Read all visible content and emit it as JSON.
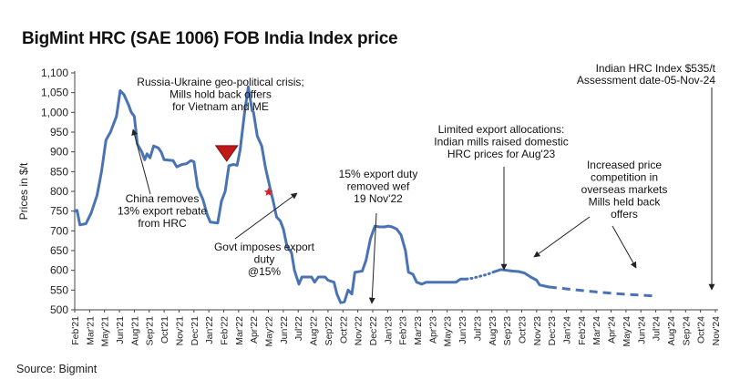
{
  "title": "BigMint HRC (SAE 1006) FOB India Index price",
  "source": "Source: Bigmint",
  "chart_data": {
    "type": "line",
    "ylabel": "Prices in $/t",
    "ylim": [
      500,
      1100
    ],
    "yticks": [
      500,
      550,
      600,
      650,
      700,
      750,
      800,
      850,
      900,
      950,
      1000,
      1050,
      1100
    ],
    "ytick_labels": [
      "500",
      "550",
      "600",
      "650",
      "700",
      "750",
      "800",
      "850",
      "900",
      "950",
      "1,000",
      "1,050",
      "1,100"
    ],
    "categories": [
      "Feb'21",
      "Mar'21",
      "May'21",
      "Jun'21",
      "Aug'21",
      "Sep'21",
      "Oct'21",
      "Nov'21",
      "Dec'21",
      "Jan'22",
      "Feb'22",
      "Mar'22",
      "Apr'22",
      "May'22",
      "Jun'22",
      "Jul'22",
      "Aug'22",
      "Sep'22",
      "Oct'22",
      "Nov'22",
      "Dec'22",
      "Jan'23",
      "Feb'23",
      "Mar'23",
      "Apr'23",
      "May'23",
      "Jun'23",
      "Jul'23",
      "Aug'23",
      "Sep'23",
      "Oct'23",
      "Nov'23",
      "Dec'23",
      "Jan'24",
      "Feb'24",
      "Mar'24",
      "Apr'24",
      "May'24",
      "Jun'24",
      "Jul'24",
      "Aug'24",
      "Sep'24",
      "Oct'24",
      "Nov'24"
    ],
    "line_color": "#4a73b5",
    "series": [
      {
        "style": "solid",
        "points": [
          [
            0,
            750
          ],
          [
            0.15,
            752
          ],
          [
            0.35,
            715
          ],
          [
            0.75,
            718
          ],
          [
            1.1,
            745
          ],
          [
            1.5,
            790
          ],
          [
            1.8,
            850
          ],
          [
            2.1,
            930
          ],
          [
            2.4,
            950
          ],
          [
            2.8,
            990
          ],
          [
            3.05,
            1055
          ],
          [
            3.3,
            1045
          ],
          [
            3.6,
            1020
          ],
          [
            3.8,
            1000
          ],
          [
            4.0,
            990
          ],
          [
            4.2,
            920
          ],
          [
            4.5,
            900
          ],
          [
            4.7,
            880
          ],
          [
            4.85,
            895
          ],
          [
            5.05,
            885
          ],
          [
            5.3,
            915
          ],
          [
            5.6,
            910
          ],
          [
            5.8,
            900
          ],
          [
            6.0,
            880
          ],
          [
            6.6,
            878
          ],
          [
            6.85,
            862
          ],
          [
            7.2,
            868
          ],
          [
            7.5,
            870
          ],
          [
            7.8,
            878
          ],
          [
            8.0,
            875
          ],
          [
            8.25,
            810
          ],
          [
            8.6,
            780
          ],
          [
            8.9,
            740
          ],
          [
            9.1,
            722
          ],
          [
            9.6,
            720
          ],
          [
            9.85,
            775
          ],
          [
            10.1,
            800
          ],
          [
            10.35,
            865
          ],
          [
            10.65,
            868
          ],
          [
            10.9,
            866
          ],
          [
            11.1,
            905
          ],
          [
            11.4,
            1000
          ],
          [
            11.65,
            1065
          ],
          [
            11.9,
            1005
          ],
          [
            12.0,
            1000
          ],
          [
            12.25,
            940
          ],
          [
            12.55,
            915
          ],
          [
            12.8,
            860
          ],
          [
            13.1,
            810
          ],
          [
            13.35,
            770
          ],
          [
            13.55,
            735
          ],
          [
            13.8,
            725
          ],
          [
            14.0,
            705
          ],
          [
            14.25,
            660
          ],
          [
            14.55,
            645
          ],
          [
            14.75,
            600
          ],
          [
            15.05,
            565
          ],
          [
            15.25,
            583
          ],
          [
            15.9,
            583
          ],
          [
            16.1,
            570
          ],
          [
            16.35,
            583
          ],
          [
            16.8,
            583
          ],
          [
            17.0,
            575
          ],
          [
            17.4,
            570
          ],
          [
            17.6,
            540
          ],
          [
            17.85,
            518
          ],
          [
            18.1,
            520
          ],
          [
            18.35,
            550
          ],
          [
            18.6,
            540
          ],
          [
            18.8,
            595
          ],
          [
            19.3,
            598
          ],
          [
            19.55,
            625
          ],
          [
            19.85,
            680
          ],
          [
            20.15,
            712
          ],
          [
            20.45,
            710
          ],
          [
            20.8,
            710
          ],
          [
            21.05,
            712
          ],
          [
            21.3,
            710
          ],
          [
            21.6,
            705
          ],
          [
            21.9,
            690
          ],
          [
            22.2,
            650
          ],
          [
            22.4,
            595
          ],
          [
            22.7,
            590
          ],
          [
            22.95,
            570
          ],
          [
            23.3,
            565
          ],
          [
            23.6,
            570
          ],
          [
            24.0,
            570
          ],
          [
            24.4,
            570
          ],
          [
            24.8,
            570
          ],
          [
            25.2,
            570
          ],
          [
            25.6,
            570
          ],
          [
            25.9,
            578
          ],
          [
            26.3,
            578
          ]
        ]
      },
      {
        "style": "dotted",
        "points": [
          [
            26.3,
            578
          ],
          [
            26.7,
            580
          ],
          [
            27.2,
            585
          ],
          [
            27.7,
            590
          ],
          [
            28.2,
            597
          ]
        ]
      },
      {
        "style": "solid",
        "points": [
          [
            28.2,
            597
          ],
          [
            28.6,
            602
          ],
          [
            29.0,
            600
          ],
          [
            29.4,
            598
          ],
          [
            29.8,
            597
          ],
          [
            30.2,
            593
          ],
          [
            30.6,
            583
          ],
          [
            31.0,
            575
          ],
          [
            31.2,
            563
          ],
          [
            31.8,
            558
          ]
        ]
      },
      {
        "style": "dashed",
        "points": [
          [
            31.8,
            558
          ],
          [
            33.0,
            553
          ],
          [
            34.5,
            547
          ],
          [
            36.0,
            542
          ],
          [
            37.5,
            538
          ],
          [
            39.0,
            535
          ]
        ]
      }
    ],
    "markers": [
      {
        "type": "triangle-down",
        "x": 10.2,
        "y": 895,
        "color": "#c21a1a"
      },
      {
        "type": "star",
        "x": 13.0,
        "y": 798,
        "color": "#e02020"
      }
    ],
    "annotations": [
      {
        "lines": [
          "Russia-Ukraine geo-political crisis;",
          "Mills hold back offers",
          "for Vietnam and ME"
        ]
      },
      {
        "lines": [
          "China removes",
          "13% export rebate",
          "from HRC"
        ]
      },
      {
        "lines": [
          "Govt imposes export",
          "duty",
          "@15%"
        ]
      },
      {
        "lines": [
          "15% export duty",
          "removed wef",
          "19 Nov'22"
        ]
      },
      {
        "lines": [
          "Limited export allocations:",
          "Indian mills raised domestic",
          "HRC prices for Aug'23"
        ]
      },
      {
        "lines": [
          "Increased price",
          "competition in",
          "overseas markets",
          "Mills held back",
          "offers"
        ]
      },
      {
        "lines": [
          "Indian HRC Index $535/t",
          "Assessment date-05-Nov-24"
        ]
      }
    ]
  }
}
